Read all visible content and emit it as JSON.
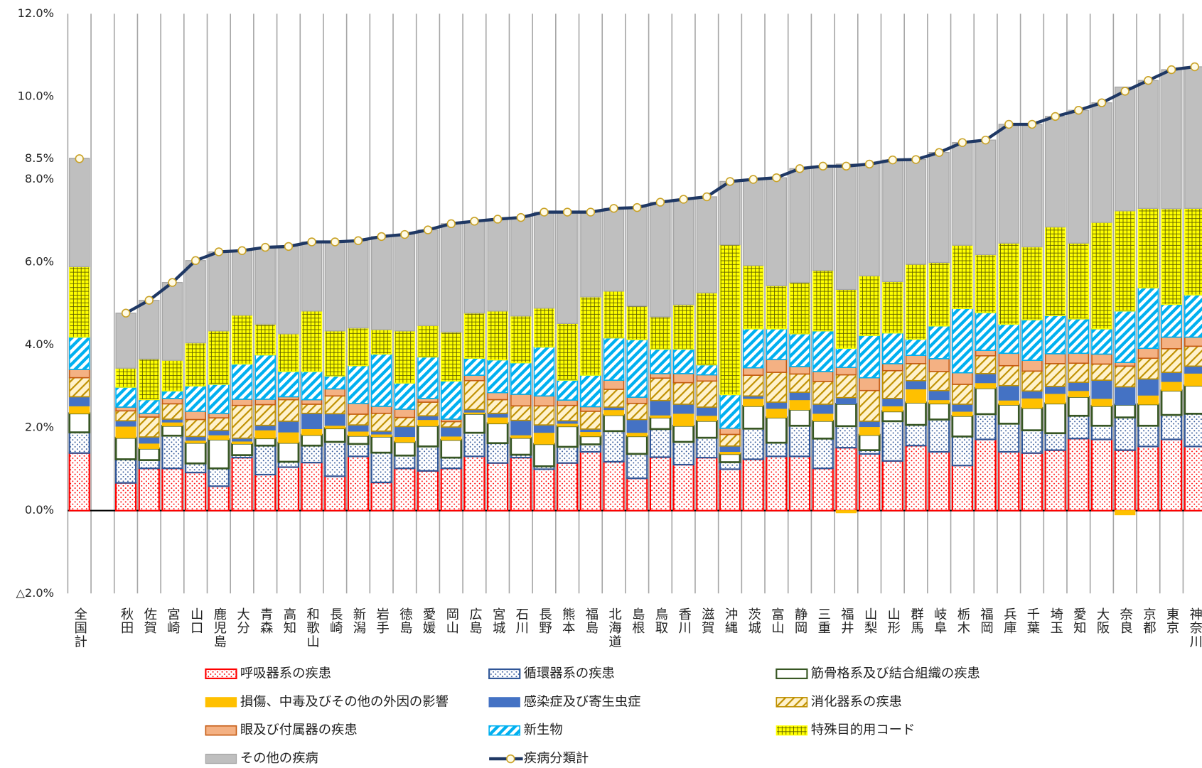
{
  "chart_data": {
    "type": "bar",
    "stacked": true,
    "categories": [
      "全国計",
      null,
      "秋田",
      "佐賀",
      "宮崎",
      "山口",
      "鹿児島",
      "大分",
      "青森",
      "高知",
      "和歌山",
      "長崎",
      "新潟",
      "岩手",
      "徳島",
      "愛媛",
      "岡山",
      "広島",
      "宮城",
      "石川",
      "長野",
      "熊本",
      "福島",
      "北海道",
      "島根",
      "鳥取",
      "香川",
      "滋賀",
      "沖縄",
      "茨城",
      "富山",
      "静岡",
      "三重",
      "福井",
      "山梨",
      "山形",
      "群馬",
      "岐阜",
      "栃木",
      "福岡",
      "兵庫",
      "千葉",
      "埼玉",
      "愛知",
      "大阪",
      "奈良",
      "京都",
      "東京",
      "神奈川"
    ],
    "ylim": [
      -2,
      12
    ],
    "yticks": [
      {
        "value": -2,
        "label": "△2.0%"
      },
      {
        "value": 0,
        "label": "0.0%"
      },
      {
        "value": 2,
        "label": "2.0%"
      },
      {
        "value": 4,
        "label": "4.0%"
      },
      {
        "value": 6,
        "label": "6.0%"
      },
      {
        "value": 8,
        "label": "8.0%"
      },
      {
        "value": 8.5,
        "label": "8.5%"
      },
      {
        "value": 10,
        "label": "10.0%"
      },
      {
        "value": 12,
        "label": "12.0%"
      }
    ],
    "series": [
      {
        "name": "呼吸器系の疾患",
        "color": "#ff0000",
        "pattern": "dots",
        "values": [
          1.39,
          null,
          0.67,
          1.02,
          1.02,
          0.92,
          0.59,
          1.28,
          0.87,
          1.05,
          1.16,
          0.83,
          1.31,
          0.68,
          1.02,
          0.96,
          1.02,
          1.31,
          1.15,
          1.28,
          1.0,
          1.15,
          1.42,
          1.18,
          0.78,
          1.29,
          1.11,
          1.28,
          1.0,
          1.24,
          1.31,
          1.31,
          1.02,
          1.52,
          1.37,
          1.2,
          1.57,
          1.42,
          1.09,
          1.72,
          1.42,
          1.39,
          1.46,
          1.74,
          1.72,
          1.46,
          1.55,
          1.72,
          1.55
        ]
      },
      {
        "name": "循環器系の疾患",
        "color": "#2f5597",
        "pattern": "dots",
        "values": [
          0.5,
          null,
          0.57,
          0.2,
          0.79,
          0.22,
          0.43,
          0.06,
          0.7,
          0.13,
          0.41,
          0.83,
          0.3,
          0.72,
          0.31,
          0.59,
          0.26,
          0.57,
          0.48,
          0.07,
          0.07,
          0.39,
          0.18,
          0.74,
          0.59,
          0.68,
          0.55,
          0.48,
          0.17,
          0.74,
          0.33,
          0.74,
          0.72,
          0.52,
          0.09,
          0.96,
          0.5,
          0.78,
          0.7,
          0.61,
          0.68,
          0.55,
          0.41,
          0.55,
          0.33,
          0.79,
          0.5,
          0.59,
          0.79
        ]
      },
      {
        "name": "筋骨格系及び結合組織の疾患",
        "color": "#375623",
        "pattern": "outline",
        "values": [
          0.46,
          null,
          0.52,
          0.28,
          0.24,
          0.5,
          0.7,
          0.28,
          0.18,
          0.46,
          0.26,
          0.33,
          0.2,
          0.39,
          0.33,
          0.5,
          0.43,
          0.46,
          0.48,
          0.41,
          0.54,
          0.5,
          0.2,
          0.39,
          0.43,
          0.28,
          0.39,
          0.41,
          0.2,
          0.55,
          0.61,
          0.39,
          0.43,
          0.54,
          0.37,
          0.24,
          0.54,
          0.39,
          0.5,
          0.63,
          0.46,
          0.54,
          0.72,
          0.46,
          0.48,
          0.31,
          0.52,
          0.59,
          0.68
        ]
      },
      {
        "name": "損傷、中毒及びその他の外因の影響",
        "color": "#ffc000",
        "pattern": "solid",
        "values": [
          0.18,
          null,
          0.28,
          0.13,
          0.09,
          0.06,
          0.11,
          0.06,
          0.2,
          0.26,
          0.15,
          0.07,
          0.11,
          0.06,
          0.13,
          0.15,
          0.09,
          0.04,
          0.15,
          0.07,
          0.28,
          0.07,
          0.11,
          0.13,
          0.09,
          0.06,
          0.3,
          0.13,
          0.06,
          0.18,
          0.22,
          0.24,
          0.18,
          -0.05,
          0.2,
          0.13,
          0.33,
          0.09,
          0.11,
          0.13,
          0.11,
          0.24,
          0.24,
          0.15,
          0.18,
          -0.1,
          0.22,
          0.22,
          0.3
        ]
      },
      {
        "name": "感染症及び寄生虫症",
        "color": "#4472c4",
        "pattern": "solid",
        "values": [
          0.22,
          null,
          0.13,
          0.15,
          0.07,
          0.09,
          0.11,
          0.07,
          0.11,
          0.26,
          0.37,
          0.28,
          0.15,
          0.07,
          0.24,
          0.09,
          0.22,
          0.06,
          0.09,
          0.35,
          0.18,
          0.06,
          0.06,
          0.06,
          0.31,
          0.35,
          0.22,
          0.2,
          0.13,
          0.06,
          0.15,
          0.18,
          0.22,
          0.15,
          0.13,
          0.18,
          0.2,
          0.22,
          0.17,
          0.22,
          0.35,
          0.17,
          0.17,
          0.2,
          0.44,
          0.43,
          0.39,
          0.22,
          0.17
        ]
      },
      {
        "name": "消化器系の疾患",
        "color": "#bf9000",
        "pattern": "hatch-light",
        "values": [
          0.46,
          null,
          0.24,
          0.48,
          0.37,
          0.41,
          0.3,
          0.79,
          0.5,
          0.52,
          0.22,
          0.43,
          0.26,
          0.43,
          0.22,
          0.33,
          0.13,
          0.7,
          0.33,
          0.35,
          0.46,
          0.37,
          0.43,
          0.43,
          0.39,
          0.54,
          0.52,
          0.63,
          0.28,
          0.5,
          0.72,
          0.44,
          0.55,
          0.55,
          0.74,
          0.67,
          0.41,
          0.46,
          0.48,
          0.43,
          0.48,
          0.48,
          0.55,
          0.46,
          0.39,
          0.5,
          0.5,
          0.57,
          0.48
        ]
      },
      {
        "name": "眼及び付属器の疾患",
        "color": "#c55a11",
        "pattern": "tint",
        "values": [
          0.2,
          null,
          0.09,
          0.09,
          0.13,
          0.2,
          0.11,
          0.15,
          0.13,
          0.07,
          0.11,
          0.17,
          0.26,
          0.17,
          0.2,
          0.09,
          0.06,
          0.13,
          0.17,
          0.28,
          0.24,
          0.13,
          0.11,
          0.22,
          0.15,
          0.11,
          0.22,
          0.15,
          0.15,
          0.18,
          0.31,
          0.18,
          0.24,
          0.18,
          0.31,
          0.17,
          0.2,
          0.31,
          0.28,
          0.13,
          0.3,
          0.26,
          0.24,
          0.24,
          0.24,
          0.09,
          0.24,
          0.28,
          0.22
        ]
      },
      {
        "name": "新生物",
        "color": "#00b0f0",
        "pattern": "hatch",
        "values": [
          0.78,
          null,
          0.48,
          0.33,
          0.18,
          0.61,
          0.7,
          0.85,
          1.07,
          0.61,
          0.68,
          0.31,
          0.91,
          1.26,
          0.63,
          1.0,
          0.92,
          0.41,
          0.79,
          0.76,
          1.18,
          0.48,
          0.76,
          1.02,
          1.39,
          0.59,
          0.59,
          0.24,
          0.81,
          0.94,
          0.74,
          0.79,
          0.98,
          0.46,
          1.02,
          0.74,
          0.39,
          0.79,
          1.55,
          0.91,
          0.7,
          0.98,
          0.92,
          0.83,
          0.61,
          1.24,
          1.46,
          0.79,
          1.02
        ]
      },
      {
        "name": "特殊目的用コード",
        "color": "#ffff00",
        "pattern": "grid",
        "values": [
          1.7,
          null,
          0.46,
          0.98,
          0.74,
          1.04,
          1.29,
          1.18,
          0.74,
          0.91,
          1.46,
          1.09,
          0.91,
          0.59,
          1.26,
          0.76,
          1.18,
          1.09,
          1.18,
          1.13,
          0.94,
          1.37,
          1.89,
          1.13,
          0.81,
          0.78,
          1.07,
          1.74,
          3.62,
          1.53,
          1.04,
          1.24,
          1.46,
          1.42,
          1.44,
          1.24,
          1.81,
          1.53,
          1.53,
          1.4,
          1.96,
          1.76,
          2.14,
          1.83,
          2.57,
          2.42,
          1.92,
          2.31,
          2.09
        ]
      },
      {
        "name": "その他の疾病",
        "color": "#bfbfbf",
        "pattern": "solid",
        "values": [
          2.62,
          null,
          1.33,
          1.42,
          1.88,
          1.99,
          1.91,
          1.56,
          1.84,
          2.11,
          1.67,
          2.15,
          2.11,
          2.25,
          2.33,
          2.31,
          2.62,
          2.22,
          2.22,
          2.38,
          2.32,
          2.69,
          2.05,
          2.0,
          2.38,
          2.77,
          2.55,
          2.32,
          1.53,
          2.08,
          2.61,
          2.75,
          2.52,
          3.03,
          2.7,
          2.94,
          2.53,
          2.66,
          2.48,
          2.77,
          2.87,
          2.96,
          2.67,
          3.21,
          2.89,
          2.99,
          3.09,
          3.36,
          3.42
        ]
      },
      {
        "name": "疾病分類計",
        "type": "line",
        "color": "#1f3864",
        "marker_color": "#c9a227",
        "values": [
          8.5,
          null,
          4.77,
          5.08,
          5.51,
          6.04,
          6.25,
          6.28,
          6.36,
          6.38,
          6.49,
          6.49,
          6.52,
          6.62,
          6.67,
          6.78,
          6.93,
          6.99,
          7.04,
          7.08,
          7.21,
          7.21,
          7.21,
          7.3,
          7.32,
          7.45,
          7.52,
          7.58,
          7.95,
          8.0,
          8.04,
          8.26,
          8.32,
          8.32,
          8.37,
          8.47,
          8.48,
          8.65,
          8.89,
          8.95,
          9.33,
          9.33,
          9.52,
          9.67,
          9.85,
          10.13,
          10.39,
          10.65,
          10.72
        ]
      }
    ]
  }
}
